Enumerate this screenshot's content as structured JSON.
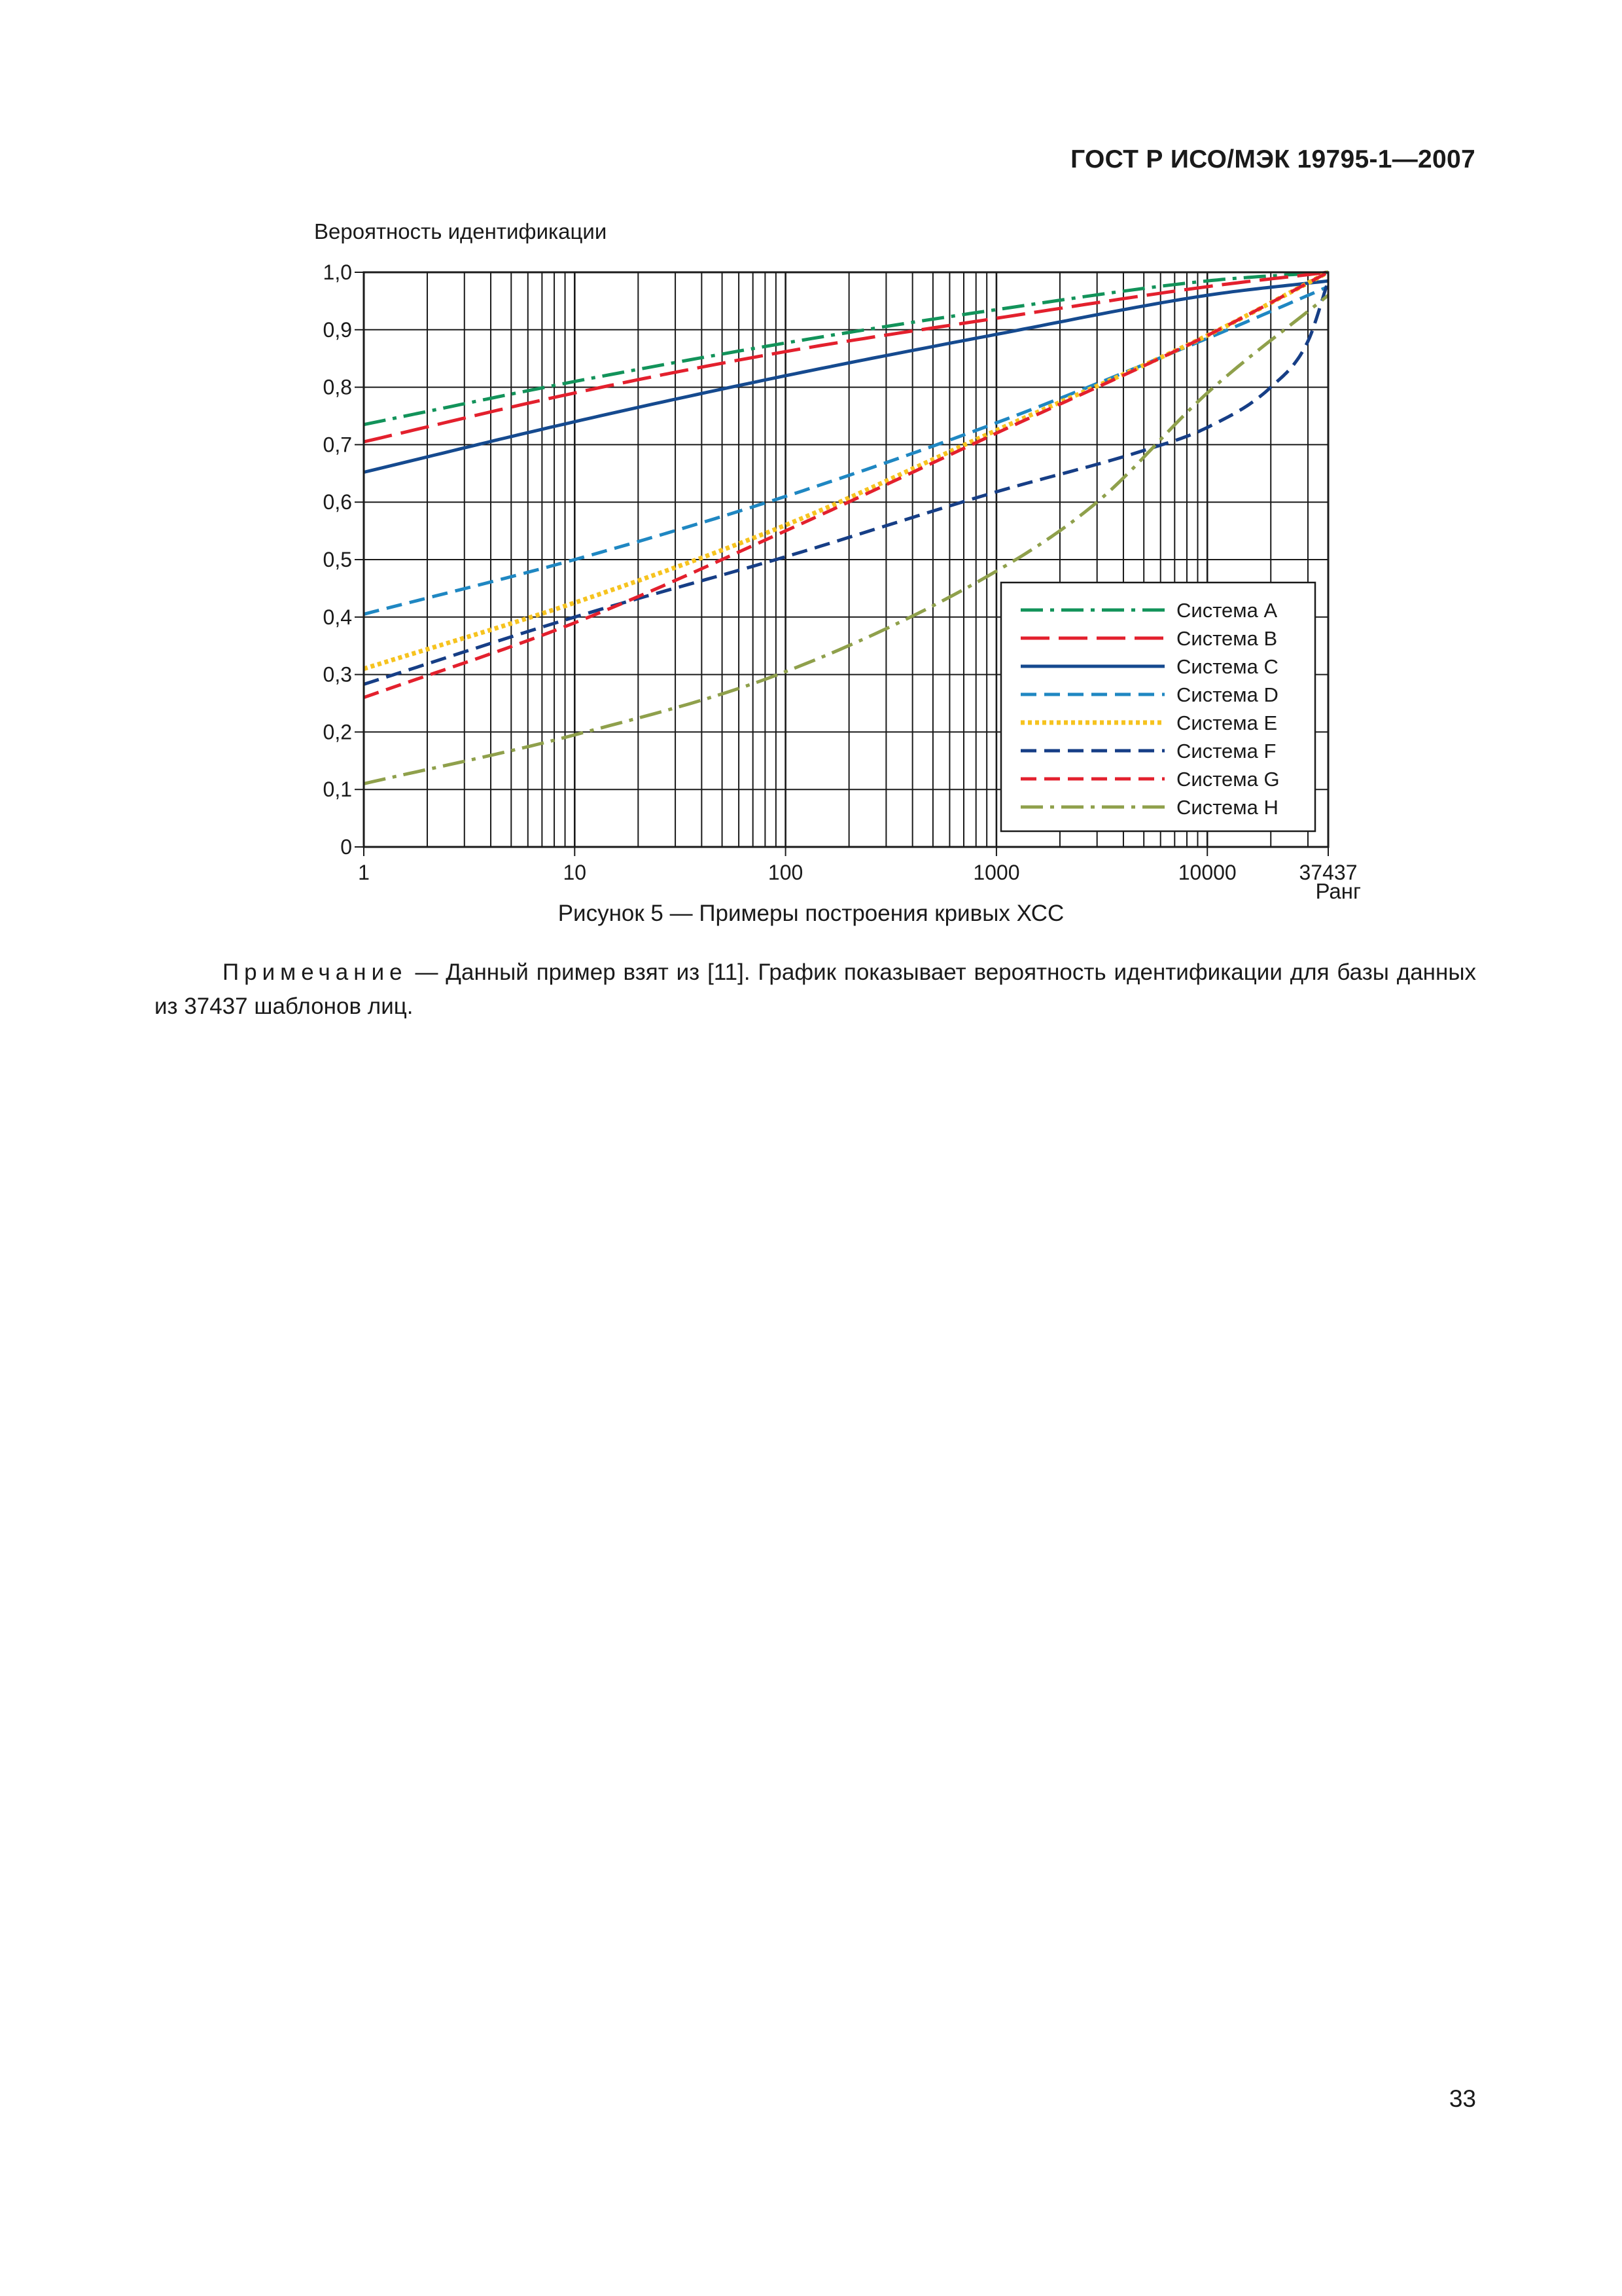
{
  "header": {
    "title": "ГОСТ Р ИСО/МЭК 19795-1—2007"
  },
  "figure": {
    "caption": "Рисунок 5 — Примеры построения кривых ХСС"
  },
  "note": {
    "label": "Примечание",
    "text": " — Данный пример взят из [11]. График показывает вероятность идентификации для базы данных из 37437 шаблонов лиц."
  },
  "page_number": "33",
  "chart_data": {
    "type": "line",
    "title": "",
    "ylabel": "Вероятность идентификации",
    "xlabel": "Ранг",
    "x_scale": "log",
    "xlim": [
      1,
      37437
    ],
    "ylim": [
      0,
      1.0
    ],
    "grid": true,
    "legend_position": "lower-right",
    "x_ticks": [
      {
        "value": 1,
        "label": "1"
      },
      {
        "value": 10,
        "label": "10"
      },
      {
        "value": 100,
        "label": "100"
      },
      {
        "value": 1000,
        "label": "1000"
      },
      {
        "value": 10000,
        "label": "10000"
      },
      {
        "value": 37437,
        "label": "37437"
      }
    ],
    "y_ticks": [
      {
        "value": 0,
        "label": "0"
      },
      {
        "value": 0.1,
        "label": "0,1"
      },
      {
        "value": 0.2,
        "label": "0,2"
      },
      {
        "value": 0.3,
        "label": "0,3"
      },
      {
        "value": 0.4,
        "label": "0,4"
      },
      {
        "value": 0.5,
        "label": "0,5"
      },
      {
        "value": 0.6,
        "label": "0,6"
      },
      {
        "value": 0.7,
        "label": "0,7"
      },
      {
        "value": 0.8,
        "label": "0,8"
      },
      {
        "value": 0.9,
        "label": "0,9"
      },
      {
        "value": 1.0,
        "label": "1,0"
      }
    ],
    "series": [
      {
        "name": "Система А",
        "color": "#12935a",
        "style": "dashdot",
        "points": [
          [
            1,
            0.735
          ],
          [
            10,
            0.81
          ],
          [
            100,
            0.877
          ],
          [
            1000,
            0.935
          ],
          [
            10000,
            0.985
          ],
          [
            37437,
            1.0
          ]
        ]
      },
      {
        "name": "Система В",
        "color": "#e3202d",
        "style": "longdash",
        "points": [
          [
            1,
            0.705
          ],
          [
            10,
            0.79
          ],
          [
            100,
            0.862
          ],
          [
            1000,
            0.92
          ],
          [
            10000,
            0.975
          ],
          [
            37437,
            1.0
          ]
        ]
      },
      {
        "name": "Система С",
        "color": "#154a8f",
        "style": "solid",
        "points": [
          [
            1,
            0.652
          ],
          [
            10,
            0.74
          ],
          [
            100,
            0.82
          ],
          [
            1000,
            0.892
          ],
          [
            10000,
            0.96
          ],
          [
            37437,
            0.985
          ]
        ]
      },
      {
        "name": "Система D",
        "color": "#1f87c2",
        "style": "dash",
        "points": [
          [
            1,
            0.405
          ],
          [
            10,
            0.5
          ],
          [
            100,
            0.61
          ],
          [
            1000,
            0.738
          ],
          [
            10000,
            0.885
          ],
          [
            37437,
            0.975
          ]
        ]
      },
      {
        "name": "Система Е",
        "color": "#f6c31f",
        "style": "dotted",
        "points": [
          [
            1,
            0.31
          ],
          [
            10,
            0.425
          ],
          [
            100,
            0.56
          ],
          [
            1000,
            0.725
          ],
          [
            10000,
            0.89
          ],
          [
            37437,
            1.0
          ]
        ]
      },
      {
        "name": "Система F",
        "color": "#163e86",
        "style": "dash",
        "points": [
          [
            1,
            0.283
          ],
          [
            10,
            0.4
          ],
          [
            100,
            0.505
          ],
          [
            1000,
            0.618
          ],
          [
            5000,
            0.69
          ],
          [
            10000,
            0.73
          ],
          [
            20000,
            0.8
          ],
          [
            30000,
            0.88
          ],
          [
            37437,
            0.985
          ]
        ]
      },
      {
        "name": "Система G",
        "color": "#e3202d",
        "style": "dash",
        "points": [
          [
            1,
            0.26
          ],
          [
            10,
            0.39
          ],
          [
            100,
            0.55
          ],
          [
            1000,
            0.72
          ],
          [
            10000,
            0.89
          ],
          [
            37437,
            1.0
          ]
        ]
      },
      {
        "name": "Система Н",
        "color": "#8fa04b",
        "style": "dashdot",
        "points": [
          [
            1,
            0.11
          ],
          [
            10,
            0.195
          ],
          [
            100,
            0.305
          ],
          [
            1000,
            0.48
          ],
          [
            3000,
            0.6
          ],
          [
            10000,
            0.79
          ],
          [
            37437,
            0.96
          ]
        ]
      }
    ]
  }
}
